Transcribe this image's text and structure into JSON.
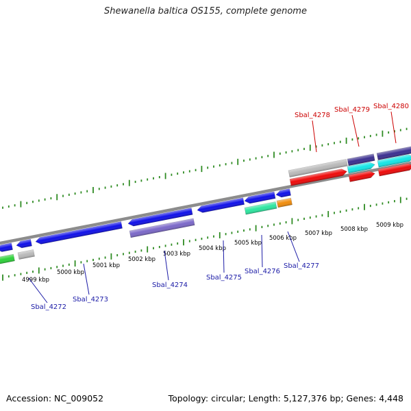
{
  "title": "Shewanella baltica OS155, complete genome",
  "footer": {
    "accession": "Accession: NC_009052",
    "summary": "Topology: circular; Length: 5,127,376 bp; Genes: 4,448"
  },
  "colors": {
    "backbone": "#8c8c8c",
    "tick": "#2e8b22",
    "label_forward": "#cc0000",
    "label_reverse": "#1a1aa6",
    "cds_blue": "#1010e8",
    "cds_red": "#ee0a0a",
    "gray": "#b9b9b9",
    "purple": "#7b68c8",
    "navy": "#3b2f8f",
    "cyan": "#14e6e6",
    "teal": "#2ee6a0",
    "green": "#2ed23a",
    "orange": "#f08c0c"
  },
  "ticks": [
    "4999 kbp",
    "5000 kbp",
    "5001 kbp",
    "5002 kbp",
    "5003 kbp",
    "5004 kbp",
    "5005 kbp",
    "5006 kbp",
    "5007 kbp",
    "5008 kbp",
    "5009 kbp"
  ],
  "genes_forward": [
    "Sbal_4278",
    "Sbal_4279",
    "Sbal_4280"
  ],
  "genes_reverse": [
    "Sbal_4272",
    "Sbal_4273",
    "Sbal_4274",
    "Sbal_4275",
    "Sbal_4276",
    "Sbal_4277"
  ]
}
